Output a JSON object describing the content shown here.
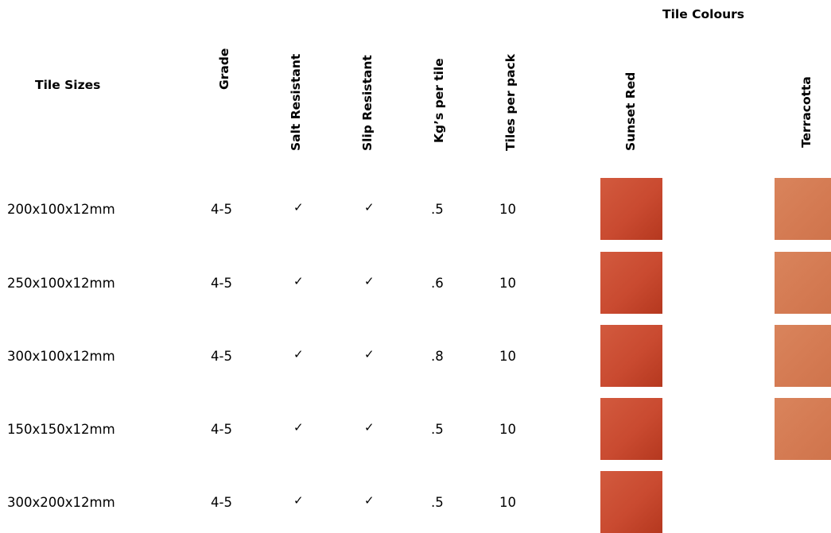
{
  "colours_heading": "Tile Colours",
  "columns": {
    "size": "Tile Sizes",
    "grade": "Grade",
    "salt": "Salt Resistant",
    "slip": "Slip Resistant",
    "kg": "Kg’s per tile",
    "pack": "Tiles per pack",
    "sunset": "Sunset Red",
    "terracotta": "Terracotta"
  },
  "colors": {
    "sunset_red": "#c94a30",
    "terracotta": "#d47a52"
  },
  "rows": [
    {
      "size": "200x100x12mm",
      "grade": "4-5",
      "salt": "✓",
      "slip": "✓",
      "kg": ".5",
      "pack": "10",
      "sunset": true,
      "terracotta": true
    },
    {
      "size": "250x100x12mm",
      "grade": "4-5",
      "salt": "✓",
      "slip": "✓",
      "kg": ".6",
      "pack": "10",
      "sunset": true,
      "terracotta": true
    },
    {
      "size": "300x100x12mm",
      "grade": "4-5",
      "salt": "✓",
      "slip": "✓",
      "kg": ".8",
      "pack": "10",
      "sunset": true,
      "terracotta": true
    },
    {
      "size": "150x150x12mm",
      "grade": "4-5",
      "salt": "✓",
      "slip": "✓",
      "kg": ".5",
      "pack": "10",
      "sunset": true,
      "terracotta": true
    },
    {
      "size": "300x200x12mm",
      "grade": "4-5",
      "salt": "✓",
      "slip": "✓",
      "kg": ".5",
      "pack": "10",
      "sunset": true,
      "terracotta": false
    }
  ]
}
